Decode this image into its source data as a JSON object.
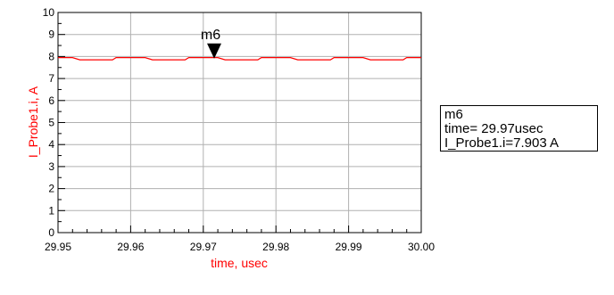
{
  "chart_data": {
    "type": "line",
    "title": "",
    "xlabel": "time, usec",
    "ylabel": "I_Probe1.i, A",
    "xlim": [
      29.95,
      30.0
    ],
    "ylim": [
      0,
      10
    ],
    "x_ticks": [
      "29.95",
      "29.96",
      "29.97",
      "29.98",
      "29.99",
      "30.00"
    ],
    "y_ticks": [
      "0",
      "1",
      "2",
      "3",
      "4",
      "5",
      "6",
      "7",
      "8",
      "9",
      "10"
    ],
    "grid": true,
    "series": [
      {
        "color": "#ff0000",
        "x": [
          29.95,
          29.952,
          29.953,
          29.9575,
          29.958,
          29.962,
          29.963,
          29.9675,
          29.968,
          29.972,
          29.973,
          29.9775,
          29.978,
          29.982,
          29.983,
          29.9875,
          29.988,
          29.992,
          29.993,
          29.9975,
          29.998,
          30.0
        ],
        "y": [
          7.95,
          7.95,
          7.85,
          7.85,
          7.95,
          7.95,
          7.85,
          7.85,
          7.95,
          7.95,
          7.85,
          7.85,
          7.95,
          7.95,
          7.85,
          7.85,
          7.95,
          7.95,
          7.85,
          7.85,
          7.95,
          7.95
        ]
      }
    ],
    "marker": {
      "name": "m6",
      "x": 29.9715,
      "y": 7.903,
      "readout": [
        "m6",
        "time= 29.97usec",
        "I_Probe1.i=7.903 A"
      ]
    }
  }
}
